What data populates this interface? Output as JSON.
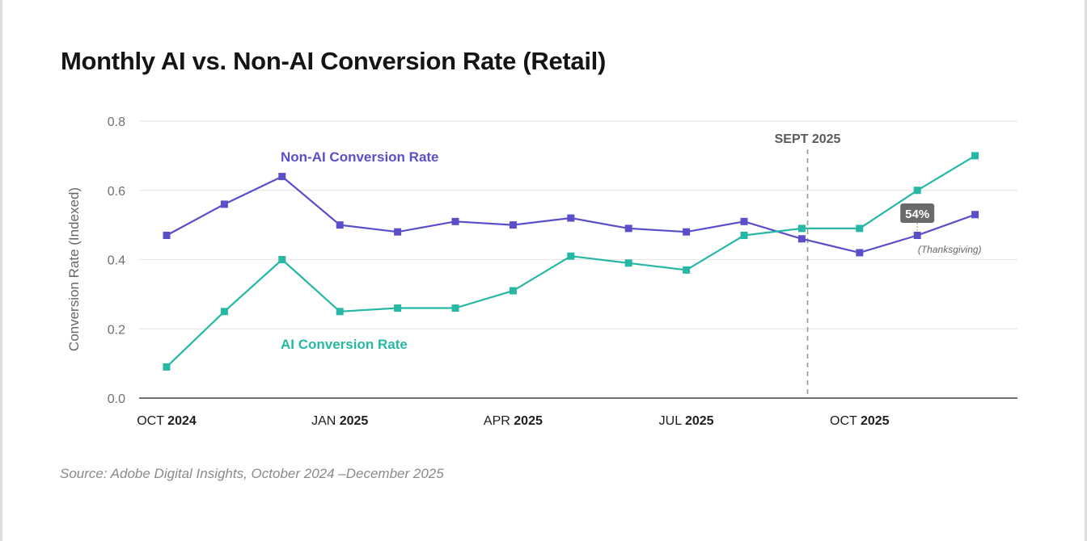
{
  "chart_data": {
    "type": "line",
    "title": "Monthly AI vs. Non-AI Conversion Rate (Retail)",
    "ylabel": "Conversion Rate (Indexed)",
    "xlabel": "",
    "ylim": [
      0,
      0.8
    ],
    "y_ticks": [
      {
        "value": 0.0,
        "label": "0.0"
      },
      {
        "value": 0.2,
        "label": "0.2"
      },
      {
        "value": 0.4,
        "label": "0.4"
      },
      {
        "value": 0.6,
        "label": "0.6"
      },
      {
        "value": 0.8,
        "label": "0.8"
      }
    ],
    "grid": true,
    "categories": [
      "Oct 2024",
      "Nov 2024",
      "Dec 2024",
      "Jan 2025",
      "Feb 2025",
      "Mar 2025",
      "Apr 2025",
      "May 2025",
      "Jun 2025",
      "Jul 2025",
      "Aug 2025",
      "Sep 2025",
      "Oct 2025",
      "Nov 2025",
      "Dec 2025"
    ],
    "x_ticks": [
      {
        "category": "Oct 2024",
        "month": "OCT",
        "year": "2024"
      },
      {
        "category": "Jan 2025",
        "month": "JAN",
        "year": "2025"
      },
      {
        "category": "Apr 2025",
        "month": "APR",
        "year": "2025"
      },
      {
        "category": "Jul 2025",
        "month": "JUL",
        "year": "2025"
      },
      {
        "category": "Oct 2025",
        "month": "OCT",
        "year": "2025"
      }
    ],
    "series": [
      {
        "name": "Non-AI Conversion Rate",
        "color": "#5b4fc9",
        "values": [
          0.47,
          0.56,
          0.64,
          0.5,
          0.48,
          0.51,
          0.5,
          0.52,
          0.49,
          0.48,
          0.51,
          0.46,
          0.42,
          0.47,
          0.53
        ]
      },
      {
        "name": "AI Conversion Rate",
        "color": "#26b8a5",
        "values": [
          0.09,
          0.25,
          0.4,
          0.25,
          0.26,
          0.26,
          0.31,
          0.41,
          0.39,
          0.37,
          0.47,
          0.49,
          0.49,
          0.6,
          0.7
        ]
      }
    ],
    "marker_line": {
      "category_position": 11.1,
      "label": "SEPT 2025"
    },
    "annotation": {
      "category": "Nov 2025",
      "label": "54%",
      "note": "(Thanksgiving)"
    },
    "source": "Source: Adobe Digital Insights, October 2024 –December 2025"
  }
}
